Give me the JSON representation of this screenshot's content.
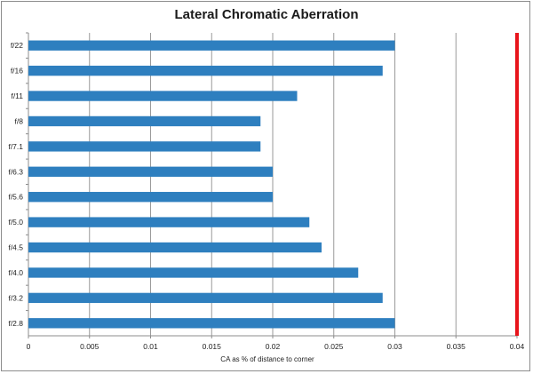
{
  "chart_data": {
    "type": "bar",
    "orientation": "horizontal",
    "title": "Lateral Chromatic Aberration",
    "xlabel": "CA as % of distance  to corner",
    "ylabel": "",
    "categories": [
      "f/22",
      "f/16",
      "f/11",
      "f/8",
      "f/7.1",
      "f/6.3",
      "f/5.6",
      "f/5.0",
      "f/4.5",
      "f/4.0",
      "f/3.2",
      "f/2.8"
    ],
    "values": [
      0.03,
      0.029,
      0.022,
      0.019,
      0.019,
      0.02,
      0.02,
      0.023,
      0.024,
      0.027,
      0.029,
      0.03
    ],
    "xlim": [
      0,
      0.04
    ],
    "xticks": [
      "0",
      "0.005",
      "0.01",
      "0.015",
      "0.02",
      "0.025",
      "0.03",
      "0.035",
      "0.04"
    ],
    "reference_line": {
      "x": 0.04,
      "color": "#e8141b"
    },
    "grid": "vertical",
    "legend": "none",
    "bar_color": "#2e7fbf",
    "grid_color": "#9a9a9a"
  }
}
